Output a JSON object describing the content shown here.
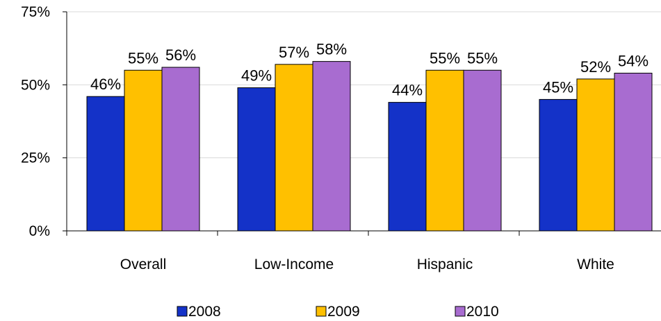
{
  "chart_data": {
    "type": "bar",
    "categories": [
      "Overall",
      "Low-Income",
      "Hispanic",
      "White"
    ],
    "series": [
      {
        "name": "2008",
        "values": [
          46,
          49,
          44,
          45
        ],
        "labels": [
          "46%",
          "49%",
          "44%",
          "45%"
        ]
      },
      {
        "name": "2009",
        "values": [
          55,
          57,
          55,
          52
        ],
        "labels": [
          "55%",
          "57%",
          "55%",
          "52%"
        ]
      },
      {
        "name": "2010",
        "values": [
          56,
          58,
          55,
          54
        ],
        "labels": [
          "56%",
          "58%",
          "55%",
          "54%"
        ]
      }
    ],
    "ylim": [
      0,
      75
    ],
    "yticks": [
      0,
      25,
      50,
      75
    ],
    "ytick_labels": [
      "0%",
      "25%",
      "50%",
      "75%"
    ],
    "title": "",
    "xlabel": "",
    "ylabel": "",
    "grid": true,
    "legend_position": "bottom",
    "colors": [
      "#1432c8",
      "#ffc000",
      "#a86cd0"
    ]
  }
}
